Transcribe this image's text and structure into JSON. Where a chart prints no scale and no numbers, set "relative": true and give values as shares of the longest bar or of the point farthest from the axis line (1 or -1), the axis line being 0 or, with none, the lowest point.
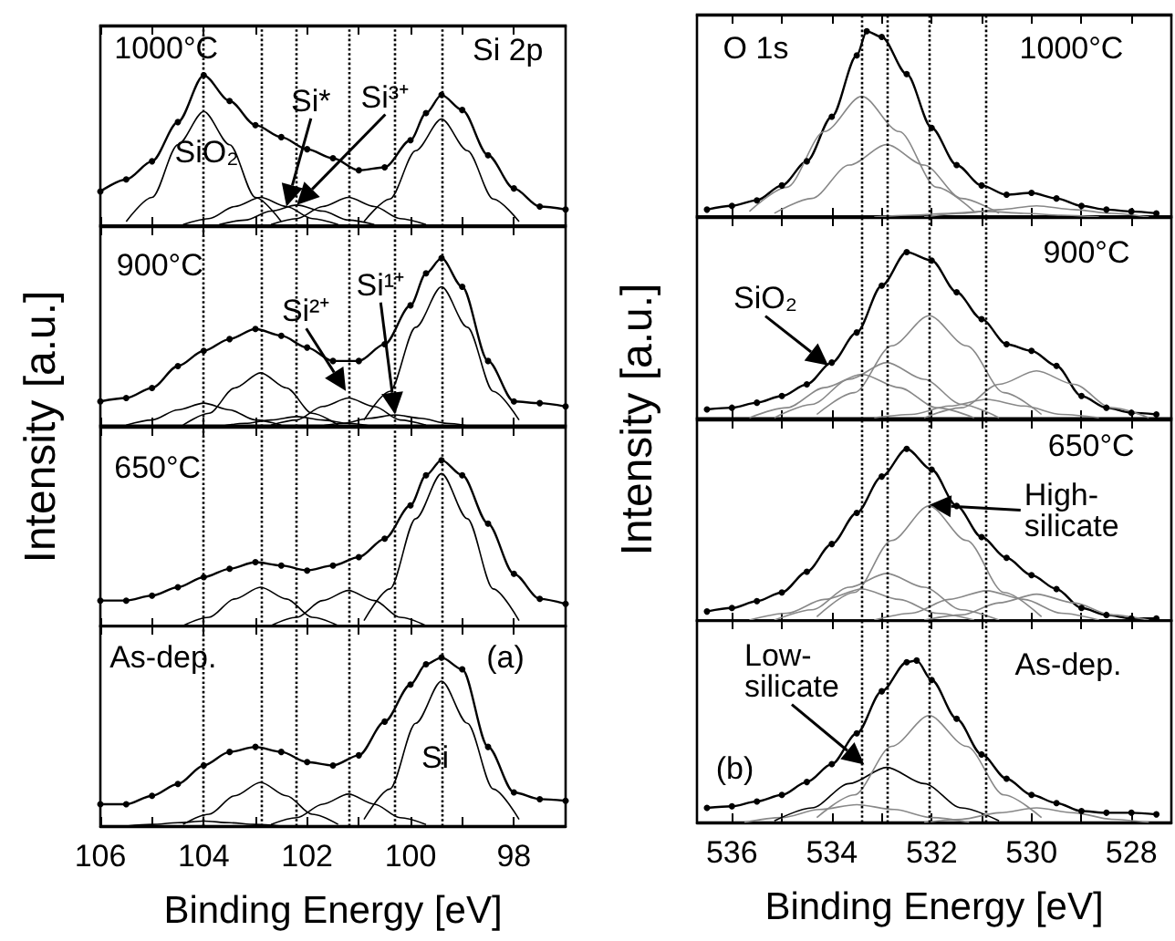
{
  "chart_data": [
    {
      "type": "line",
      "relative": true,
      "xlim": [
        106,
        97
      ],
      "xticks": [
        106,
        {
          "value": 105,
          "label": null
        },
        104,
        {
          "value": 103,
          "label": null
        },
        102,
        {
          "value": 101,
          "label": null
        },
        100,
        {
          "value": 99,
          "label": null
        },
        98
      ],
      "tick_labels": false,
      "ylabel": "Intensity [a.u.]",
      "annotations": [
        "1000°C",
        "Si 2p",
        "SiO₂",
        {
          "text": "Si*",
          "x": 102.4,
          "y": 0.13
        },
        "Si³⁺"
      ],
      "ref_lines": [
        {
          "axis": "x",
          "value": 104,
          "line_style": "dotted"
        },
        {
          "axis": "x",
          "value": 102.9,
          "line_style": "dotted"
        },
        {
          "axis": "x",
          "value": 102.2,
          "line_style": "dotted"
        },
        {
          "axis": "x",
          "value": 101.2,
          "line_style": "dotted"
        },
        {
          "axis": "x",
          "value": 100.3,
          "line_style": "dotted"
        },
        {
          "axis": "x",
          "value": 99.4,
          "line_style": "dotted"
        }
      ],
      "series": [
        {
          "color": "#000000",
          "marker": "circle",
          "x": [
            106,
            105.5,
            105,
            104.5,
            104,
            103.5,
            103,
            102.5,
            102,
            101.5,
            101,
            100.5,
            100,
            99.7,
            99.4,
            99,
            98.5,
            98,
            97.5,
            97
          ],
          "values": [
            0.23,
            0.31,
            0.43,
            0.69,
            1.0,
            0.83,
            0.67,
            0.59,
            0.51,
            0.45,
            0.37,
            0.39,
            0.57,
            0.75,
            0.87,
            0.77,
            0.47,
            0.25,
            0.13,
            0.11
          ]
        },
        {
          "color": "#000000",
          "marker": "none",
          "x": [
            105.5,
            105,
            104.5,
            104,
            103.5,
            103,
            102.5
          ],
          "values": [
            0.03,
            0.19,
            0.54,
            0.76,
            0.54,
            0.19,
            0.03
          ]
        },
        {
          "color": "#000000",
          "marker": "none",
          "x": [
            104.4,
            103.9,
            103.4,
            102.9,
            102.4,
            101.9,
            101.4
          ],
          "values": [
            0.01,
            0.05,
            0.13,
            0.19,
            0.13,
            0.05,
            0.01
          ]
        },
        {
          "color": "#000000",
          "marker": "none",
          "x": [
            103.7,
            103.2,
            102.7,
            102.2,
            101.7,
            101.2,
            100.7
          ],
          "values": [
            0.01,
            0.04,
            0.1,
            0.14,
            0.1,
            0.04,
            0.01
          ]
        },
        {
          "color": "#000000",
          "marker": "none",
          "x": [
            102.7,
            102.2,
            101.7,
            101.2,
            100.7,
            100.2,
            99.7
          ],
          "values": [
            0.01,
            0.05,
            0.13,
            0.19,
            0.13,
            0.05,
            0.01
          ]
        },
        {
          "color": "#000000",
          "marker": "none",
          "x": [
            100.9,
            100.4,
            99.9,
            99.4,
            98.9,
            98.4,
            97.9
          ],
          "values": [
            0.03,
            0.18,
            0.5,
            0.71,
            0.5,
            0.18,
            0.03
          ]
        }
      ]
    },
    {
      "type": "line",
      "relative": true,
      "xlim": [
        106,
        97
      ],
      "xticks": [
        106,
        {
          "value": 105,
          "label": null
        },
        104,
        {
          "value": 103,
          "label": null
        },
        102,
        {
          "value": 101,
          "label": null
        },
        100,
        {
          "value": 99,
          "label": null
        },
        98
      ],
      "tick_labels": false,
      "annotations": [
        "900°C",
        {
          "text": "Si²⁺",
          "x": 101.25,
          "y": 0.21
        },
        "Si¹⁺"
      ],
      "ref_lines": [
        {
          "axis": "x",
          "value": 104,
          "line_style": "dotted"
        },
        {
          "axis": "x",
          "value": 102.9,
          "line_style": "dotted"
        },
        {
          "axis": "x",
          "value": 102.2,
          "line_style": "dotted"
        },
        {
          "axis": "x",
          "value": 101.2,
          "line_style": "dotted"
        },
        {
          "axis": "x",
          "value": 100.3,
          "line_style": "dotted"
        },
        {
          "axis": "x",
          "value": 99.4,
          "line_style": "dotted"
        }
      ],
      "series": [
        {
          "color": "#000000",
          "marker": "circle",
          "x": [
            106,
            105.5,
            105,
            104.5,
            104,
            103.5,
            103,
            102.5,
            102,
            101.5,
            101,
            100.5,
            100,
            99.7,
            99.4,
            99,
            98.5,
            98,
            97.5,
            97
          ],
          "values": [
            0.15,
            0.17,
            0.23,
            0.36,
            0.45,
            0.52,
            0.58,
            0.54,
            0.47,
            0.39,
            0.39,
            0.49,
            0.72,
            0.91,
            1.0,
            0.83,
            0.39,
            0.15,
            0.14,
            0.12
          ]
        },
        {
          "color": "#000000",
          "marker": "none",
          "x": [
            105.5,
            105,
            104.5,
            104,
            103.5,
            103,
            102.5
          ],
          "values": [
            0.01,
            0.04,
            0.1,
            0.14,
            0.1,
            0.04,
            0.01
          ]
        },
        {
          "color": "#000000",
          "marker": "none",
          "x": [
            104.4,
            103.9,
            103.4,
            102.9,
            102.4,
            101.9,
            101.4
          ],
          "values": [
            0.01,
            0.08,
            0.23,
            0.32,
            0.23,
            0.08,
            0.01
          ]
        },
        {
          "color": "#000000",
          "marker": "none",
          "x": [
            103.7,
            103.2,
            102.7,
            102.2,
            101.7,
            101.2,
            100.7
          ],
          "values": [
            0,
            0.02,
            0.04,
            0.06,
            0.04,
            0.02,
            0
          ]
        },
        {
          "color": "#000000",
          "marker": "none",
          "x": [
            102.7,
            102.2,
            101.7,
            101.2,
            100.7,
            100.2,
            99.7
          ],
          "values": [
            0.01,
            0.04,
            0.12,
            0.17,
            0.12,
            0.04,
            0.01
          ]
        },
        {
          "color": "#000000",
          "marker": "none",
          "x": [
            101.8,
            101.3,
            100.8,
            100.3,
            99.8,
            99.3,
            98.8
          ],
          "values": [
            0,
            0.02,
            0.05,
            0.07,
            0.05,
            0.02,
            0
          ]
        },
        {
          "color": "#000000",
          "marker": "none",
          "x": [
            100.9,
            100.4,
            99.9,
            99.4,
            98.9,
            98.4,
            97.9
          ],
          "values": [
            0.04,
            0.21,
            0.59,
            0.83,
            0.59,
            0.21,
            0.04
          ]
        }
      ]
    },
    {
      "type": "line",
      "relative": true,
      "xlim": [
        106,
        97
      ],
      "xticks": [
        106,
        {
          "value": 105,
          "label": null
        },
        104,
        {
          "value": 103,
          "label": null
        },
        102,
        {
          "value": 101,
          "label": null
        },
        100,
        {
          "value": 99,
          "label": null
        },
        98
      ],
      "tick_labels": false,
      "annotations": [
        "650°C"
      ],
      "ref_lines": [
        {
          "axis": "x",
          "value": 104,
          "line_style": "dotted"
        },
        {
          "axis": "x",
          "value": 102.9,
          "line_style": "dotted"
        },
        {
          "axis": "x",
          "value": 102.2,
          "line_style": "dotted"
        },
        {
          "axis": "x",
          "value": 101.2,
          "line_style": "dotted"
        },
        {
          "axis": "x",
          "value": 100.3,
          "line_style": "dotted"
        },
        {
          "axis": "x",
          "value": 99.4,
          "line_style": "dotted"
        }
      ],
      "series": [
        {
          "color": "#000000",
          "marker": "circle",
          "x": [
            106,
            105.5,
            105,
            104.5,
            104,
            103.5,
            103,
            102.5,
            102,
            101.5,
            101,
            100.5,
            100,
            99.7,
            99.4,
            99,
            98.5,
            98,
            97.5,
            97
          ],
          "values": [
            0.16,
            0.16,
            0.19,
            0.24,
            0.3,
            0.35,
            0.39,
            0.37,
            0.34,
            0.37,
            0.42,
            0.53,
            0.73,
            0.91,
            1.0,
            0.91,
            0.62,
            0.32,
            0.17,
            0.14
          ]
        },
        {
          "color": "#000000",
          "marker": "none",
          "x": [
            104.4,
            103.9,
            103.4,
            102.9,
            102.4,
            101.9,
            101.4
          ],
          "values": [
            0.01,
            0.06,
            0.17,
            0.24,
            0.17,
            0.06,
            0.01
          ]
        },
        {
          "color": "#000000",
          "marker": "none",
          "x": [
            102.7,
            102.2,
            101.7,
            101.2,
            100.7,
            100.2,
            99.7
          ],
          "values": [
            0.01,
            0.06,
            0.16,
            0.22,
            0.16,
            0.06,
            0.01
          ]
        },
        {
          "color": "#000000",
          "marker": "none",
          "x": [
            100.9,
            100.4,
            99.9,
            99.4,
            98.9,
            98.4,
            97.9
          ],
          "values": [
            0.04,
            0.23,
            0.65,
            0.92,
            0.65,
            0.23,
            0.04
          ]
        }
      ]
    },
    {
      "type": "line",
      "relative": true,
      "xlim": [
        106,
        97
      ],
      "xticks": [
        106,
        {
          "value": 105,
          "label": null
        },
        104,
        {
          "value": 103,
          "label": null
        },
        102,
        {
          "value": 101,
          "label": null
        },
        100,
        {
          "value": 99,
          "label": null
        },
        98
      ],
      "tick_labels": "x",
      "xlabel": "Binding Energy [eV]",
      "annotations": [
        "As-dep.",
        "(a)",
        "Si"
      ],
      "ref_lines": [
        {
          "axis": "x",
          "value": 104,
          "line_style": "dotted"
        },
        {
          "axis": "x",
          "value": 102.9,
          "line_style": "dotted"
        },
        {
          "axis": "x",
          "value": 102.2,
          "line_style": "dotted"
        },
        {
          "axis": "x",
          "value": 101.2,
          "line_style": "dotted"
        },
        {
          "axis": "x",
          "value": 100.3,
          "line_style": "dotted"
        },
        {
          "axis": "x",
          "value": 99.4,
          "line_style": "dotted"
        }
      ],
      "series": [
        {
          "color": "#000000",
          "marker": "circle",
          "x": [
            106,
            105.5,
            105,
            104.5,
            104,
            103.5,
            103,
            102.5,
            102,
            101.5,
            101,
            100.5,
            100,
            99.7,
            99.4,
            99,
            98.5,
            98,
            97.5,
            97
          ],
          "values": [
            0.13,
            0.13,
            0.18,
            0.25,
            0.36,
            0.44,
            0.47,
            0.44,
            0.38,
            0.36,
            0.42,
            0.62,
            0.84,
            0.96,
            1.0,
            0.93,
            0.47,
            0.2,
            0.16,
            0.15
          ]
        },
        {
          "color": "#000000",
          "marker": "none",
          "x": [
            105.5,
            105,
            104.5,
            104,
            103.5,
            103,
            102.5
          ],
          "values": [
            0,
            0.01,
            0.02,
            0.03,
            0.02,
            0.01,
            0
          ]
        },
        {
          "color": "#000000",
          "marker": "none",
          "x": [
            104.4,
            103.9,
            103.4,
            102.9,
            102.4,
            101.9,
            101.4
          ],
          "values": [
            0.01,
            0.07,
            0.18,
            0.26,
            0.18,
            0.07,
            0.01
          ]
        },
        {
          "color": "#000000",
          "marker": "none",
          "x": [
            102.7,
            102.2,
            101.7,
            101.2,
            100.7,
            100.2,
            99.7
          ],
          "values": [
            0.01,
            0.05,
            0.13,
            0.19,
            0.13,
            0.05,
            0.01
          ]
        },
        {
          "color": "#000000",
          "marker": "none",
          "x": [
            100.9,
            100.4,
            99.9,
            99.4,
            98.9,
            98.4,
            97.9
          ],
          "values": [
            0.04,
            0.22,
            0.61,
            0.86,
            0.61,
            0.22,
            0.04
          ]
        }
      ]
    },
    {
      "type": "line",
      "relative": true,
      "xlim": [
        536.7,
        527.2
      ],
      "xticks": [
        536,
        {
          "value": 535,
          "label": null
        },
        534,
        {
          "value": 533,
          "label": null
        },
        532,
        {
          "value": 531,
          "label": null
        },
        530,
        {
          "value": 529,
          "label": null
        },
        528
      ],
      "tick_labels": false,
      "ylabel": "Intensity [a.u.]",
      "annotations": [
        "O 1s",
        "1000°C"
      ],
      "ref_lines": [
        {
          "axis": "x",
          "value": 533.4,
          "line_style": "dotted"
        },
        {
          "axis": "x",
          "value": 532.9,
          "line_style": "dotted"
        },
        {
          "axis": "x",
          "value": 532.05,
          "line_style": "dotted"
        },
        {
          "axis": "x",
          "value": 530.9,
          "line_style": "dotted"
        }
      ],
      "series": [
        {
          "color": "#000000",
          "marker": "circle",
          "x": [
            536.5,
            536,
            535.5,
            535,
            534.5,
            534,
            533.5,
            533.3,
            533,
            532.5,
            532,
            531.5,
            531,
            530.5,
            530,
            529.5,
            529,
            528.5,
            528,
            527.5
          ],
          "values": [
            0.04,
            0.06,
            0.09,
            0.17,
            0.3,
            0.54,
            0.87,
            1.0,
            0.97,
            0.77,
            0.48,
            0.28,
            0.17,
            0.12,
            0.13,
            0.1,
            0.06,
            0.04,
            0.03,
            0.02
          ]
        },
        {
          "color": "#888888",
          "marker": "none",
          "x": [
            535.65,
            534.9,
            534.15,
            533.4,
            532.65,
            531.9,
            531.15
          ],
          "values": [
            0.03,
            0.16,
            0.46,
            0.65,
            0.46,
            0.16,
            0.03
          ]
        },
        {
          "color": "#888888",
          "marker": "none",
          "x": [
            535.15,
            534.4,
            533.65,
            532.9,
            532.15,
            531.4,
            530.65
          ],
          "values": [
            0.02,
            0.1,
            0.28,
            0.39,
            0.28,
            0.1,
            0.02
          ]
        },
        {
          "color": "#888888",
          "marker": "none",
          "x": [
            533.15,
            532.4,
            531.65,
            530.9,
            530.15,
            529.4,
            528.65
          ],
          "values": [
            0,
            0.01,
            0.02,
            0.03,
            0.02,
            0.01,
            0
          ]
        },
        {
          "color": "#888888",
          "marker": "none",
          "x": [
            532.15,
            531.4,
            530.65,
            529.9,
            529.15,
            528.4,
            527.65
          ],
          "values": [
            0,
            0.02,
            0.04,
            0.06,
            0.04,
            0.02,
            0
          ]
        }
      ]
    },
    {
      "type": "line",
      "relative": true,
      "xlim": [
        536.7,
        527.2
      ],
      "xticks": [
        536,
        {
          "value": 535,
          "label": null
        },
        534,
        {
          "value": 533,
          "label": null
        },
        532,
        {
          "value": 531,
          "label": null
        },
        530,
        {
          "value": 529,
          "label": null
        },
        528
      ],
      "tick_labels": false,
      "annotations": [
        "900°C",
        {
          "text": "SiO₂",
          "x": 534.07,
          "y": 0.32
        }
      ],
      "ref_lines": [
        {
          "axis": "x",
          "value": 533.4,
          "line_style": "dotted"
        },
        {
          "axis": "x",
          "value": 532.9,
          "line_style": "dotted"
        },
        {
          "axis": "x",
          "value": 532.05,
          "line_style": "dotted"
        },
        {
          "axis": "x",
          "value": 530.9,
          "line_style": "dotted"
        }
      ],
      "series": [
        {
          "color": "#000000",
          "marker": "circle",
          "x": [
            536.5,
            536,
            535.5,
            535,
            534.5,
            534,
            533.5,
            533,
            532.5,
            532,
            531.5,
            531,
            530.5,
            530,
            529.5,
            529,
            528.5,
            528,
            527.5
          ],
          "values": [
            0.06,
            0.07,
            0.1,
            0.14,
            0.21,
            0.34,
            0.52,
            0.8,
            1.0,
            0.95,
            0.76,
            0.6,
            0.45,
            0.41,
            0.32,
            0.14,
            0.07,
            0.04,
            0.03
          ]
        },
        {
          "color": "#888888",
          "marker": "none",
          "x": [
            535.65,
            534.9,
            534.15,
            533.4,
            532.65,
            531.9,
            531.15
          ],
          "values": [
            0.01,
            0.07,
            0.19,
            0.27,
            0.19,
            0.07,
            0.01
          ]
        },
        {
          "color": "#888888",
          "marker": "none",
          "x": [
            535.15,
            534.4,
            533.65,
            532.9,
            532.15,
            531.4,
            530.65
          ],
          "values": [
            0.01,
            0.09,
            0.24,
            0.34,
            0.24,
            0.09,
            0.01
          ]
        },
        {
          "color": "#888888",
          "marker": "none",
          "x": [
            534.3,
            533.55,
            532.8,
            532.05,
            531.3,
            530.55,
            529.8
          ],
          "values": [
            0.03,
            0.16,
            0.44,
            0.62,
            0.44,
            0.16,
            0.03
          ]
        },
        {
          "color": "#888888",
          "marker": "none",
          "x": [
            533.15,
            532.4,
            531.65,
            530.9,
            530.15,
            529.4,
            528.65
          ],
          "values": [
            0.01,
            0.03,
            0.08,
            0.12,
            0.08,
            0.03,
            0.01
          ]
        },
        {
          "color": "#888888",
          "marker": "none",
          "x": [
            532.15,
            531.4,
            530.65,
            529.9,
            529.15,
            528.4,
            527.65
          ],
          "values": [
            0.01,
            0.07,
            0.21,
            0.29,
            0.21,
            0.07,
            0.01
          ]
        }
      ]
    },
    {
      "type": "line",
      "relative": true,
      "xlim": [
        536.7,
        527.2
      ],
      "xticks": [
        536,
        {
          "value": 535,
          "label": null
        },
        534,
        {
          "value": 533,
          "label": null
        },
        532,
        {
          "value": 531,
          "label": null
        },
        530,
        {
          "value": 529,
          "label": null
        },
        528
      ],
      "tick_labels": false,
      "annotations": [
        "650°C",
        "High-\nsilicate"
      ],
      "ref_lines": [
        {
          "axis": "x",
          "value": 533.4,
          "line_style": "dotted"
        },
        {
          "axis": "x",
          "value": 532.9,
          "line_style": "dotted"
        },
        {
          "axis": "x",
          "value": 532.05,
          "line_style": "dotted"
        },
        {
          "axis": "x",
          "value": 530.9,
          "line_style": "dotted"
        }
      ],
      "series": [
        {
          "color": "#000000",
          "marker": "circle",
          "x": [
            536.5,
            536,
            535.5,
            535,
            534.5,
            534,
            533.5,
            533,
            532.5,
            532,
            531.5,
            531,
            530.5,
            530,
            529.5,
            529,
            528.5,
            528,
            527.5
          ],
          "values": [
            0.06,
            0.08,
            0.12,
            0.17,
            0.29,
            0.45,
            0.63,
            0.84,
            1.0,
            0.88,
            0.67,
            0.49,
            0.37,
            0.27,
            0.19,
            0.08,
            0.04,
            0.02,
            0.02
          ]
        },
        {
          "color": "#888888",
          "marker": "none",
          "x": [
            535.65,
            534.9,
            534.15,
            533.4,
            532.65,
            531.9,
            531.15
          ],
          "values": [
            0.01,
            0.05,
            0.13,
            0.19,
            0.13,
            0.05,
            0.01
          ]
        },
        {
          "color": "#888888",
          "marker": "none",
          "x": [
            535.15,
            534.4,
            533.65,
            532.9,
            532.15,
            531.4,
            530.65
          ],
          "values": [
            0.01,
            0.07,
            0.2,
            0.28,
            0.2,
            0.07,
            0.01
          ]
        },
        {
          "color": "#888888",
          "marker": "none",
          "x": [
            534.3,
            533.55,
            532.8,
            532.05,
            531.3,
            530.55,
            529.8
          ],
          "values": [
            0.03,
            0.17,
            0.47,
            0.67,
            0.47,
            0.17,
            0.03
          ]
        },
        {
          "color": "#888888",
          "marker": "none",
          "x": [
            533.15,
            532.4,
            531.65,
            530.9,
            530.15,
            529.4,
            528.65
          ],
          "values": [
            0.01,
            0.05,
            0.13,
            0.18,
            0.13,
            0.05,
            0.01
          ]
        },
        {
          "color": "#888888",
          "marker": "none",
          "x": [
            532.15,
            531.4,
            530.65,
            529.9,
            529.15,
            528.4,
            527.65
          ],
          "values": [
            0.01,
            0.04,
            0.11,
            0.16,
            0.11,
            0.04,
            0.01
          ]
        }
      ]
    },
    {
      "type": "line",
      "relative": true,
      "xlim": [
        536.7,
        527.2
      ],
      "xticks": [
        536,
        {
          "value": 535,
          "label": null
        },
        534,
        {
          "value": 533,
          "label": null
        },
        532,
        {
          "value": 531,
          "label": null
        },
        530,
        {
          "value": 529,
          "label": null
        },
        528
      ],
      "tick_labels": "x",
      "xlabel": "Binding Energy [eV]",
      "annotations": [
        "As-dep.",
        "(b)",
        {
          "text": "Low-\nsilicate",
          "x": 533.35,
          "y": 0.36
        }
      ],
      "ref_lines": [
        {
          "axis": "x",
          "value": 533.4,
          "line_style": "dotted"
        },
        {
          "axis": "x",
          "value": 532.9,
          "line_style": "dotted"
        },
        {
          "axis": "x",
          "value": 532.05,
          "line_style": "dotted"
        },
        {
          "axis": "x",
          "value": 530.9,
          "line_style": "dotted"
        }
      ],
      "series": [
        {
          "color": "#000000",
          "marker": "circle",
          "x": [
            536.5,
            536,
            535.5,
            535,
            534.5,
            534,
            533.5,
            533,
            532.5,
            532.3,
            532,
            531.5,
            531,
            530.5,
            530,
            529.5,
            529,
            528.5,
            528,
            527.5
          ],
          "values": [
            0.09,
            0.1,
            0.13,
            0.17,
            0.25,
            0.36,
            0.55,
            0.81,
            0.99,
            1.0,
            0.88,
            0.64,
            0.42,
            0.27,
            0.17,
            0.12,
            0.07,
            0.06,
            0.06,
            0.05
          ]
        },
        {
          "color": "#888888",
          "marker": "none",
          "x": [
            535.75,
            535,
            534.25,
            533.5,
            532.75,
            532,
            531.25
          ],
          "values": [
            0,
            0.03,
            0.08,
            0.11,
            0.08,
            0.03,
            0
          ]
        },
        {
          "color": "#000000",
          "marker": "none",
          "x": [
            535.15,
            534.4,
            533.65,
            532.9,
            532.15,
            531.4,
            530.65
          ],
          "values": [
            0.01,
            0.09,
            0.24,
            0.34,
            0.24,
            0.09,
            0.01
          ]
        },
        {
          "color": "#888888",
          "marker": "none",
          "x": [
            534.3,
            533.55,
            532.8,
            532.05,
            531.3,
            530.55,
            529.8
          ],
          "values": [
            0.03,
            0.17,
            0.47,
            0.66,
            0.47,
            0.17,
            0.03
          ]
        },
        {
          "color": "#888888",
          "marker": "none",
          "x": [
            532.15,
            531.4,
            530.65,
            529.9,
            529.15,
            528.4,
            527.65
          ],
          "values": [
            0,
            0.02,
            0.06,
            0.09,
            0.06,
            0.02,
            0
          ]
        }
      ]
    }
  ]
}
